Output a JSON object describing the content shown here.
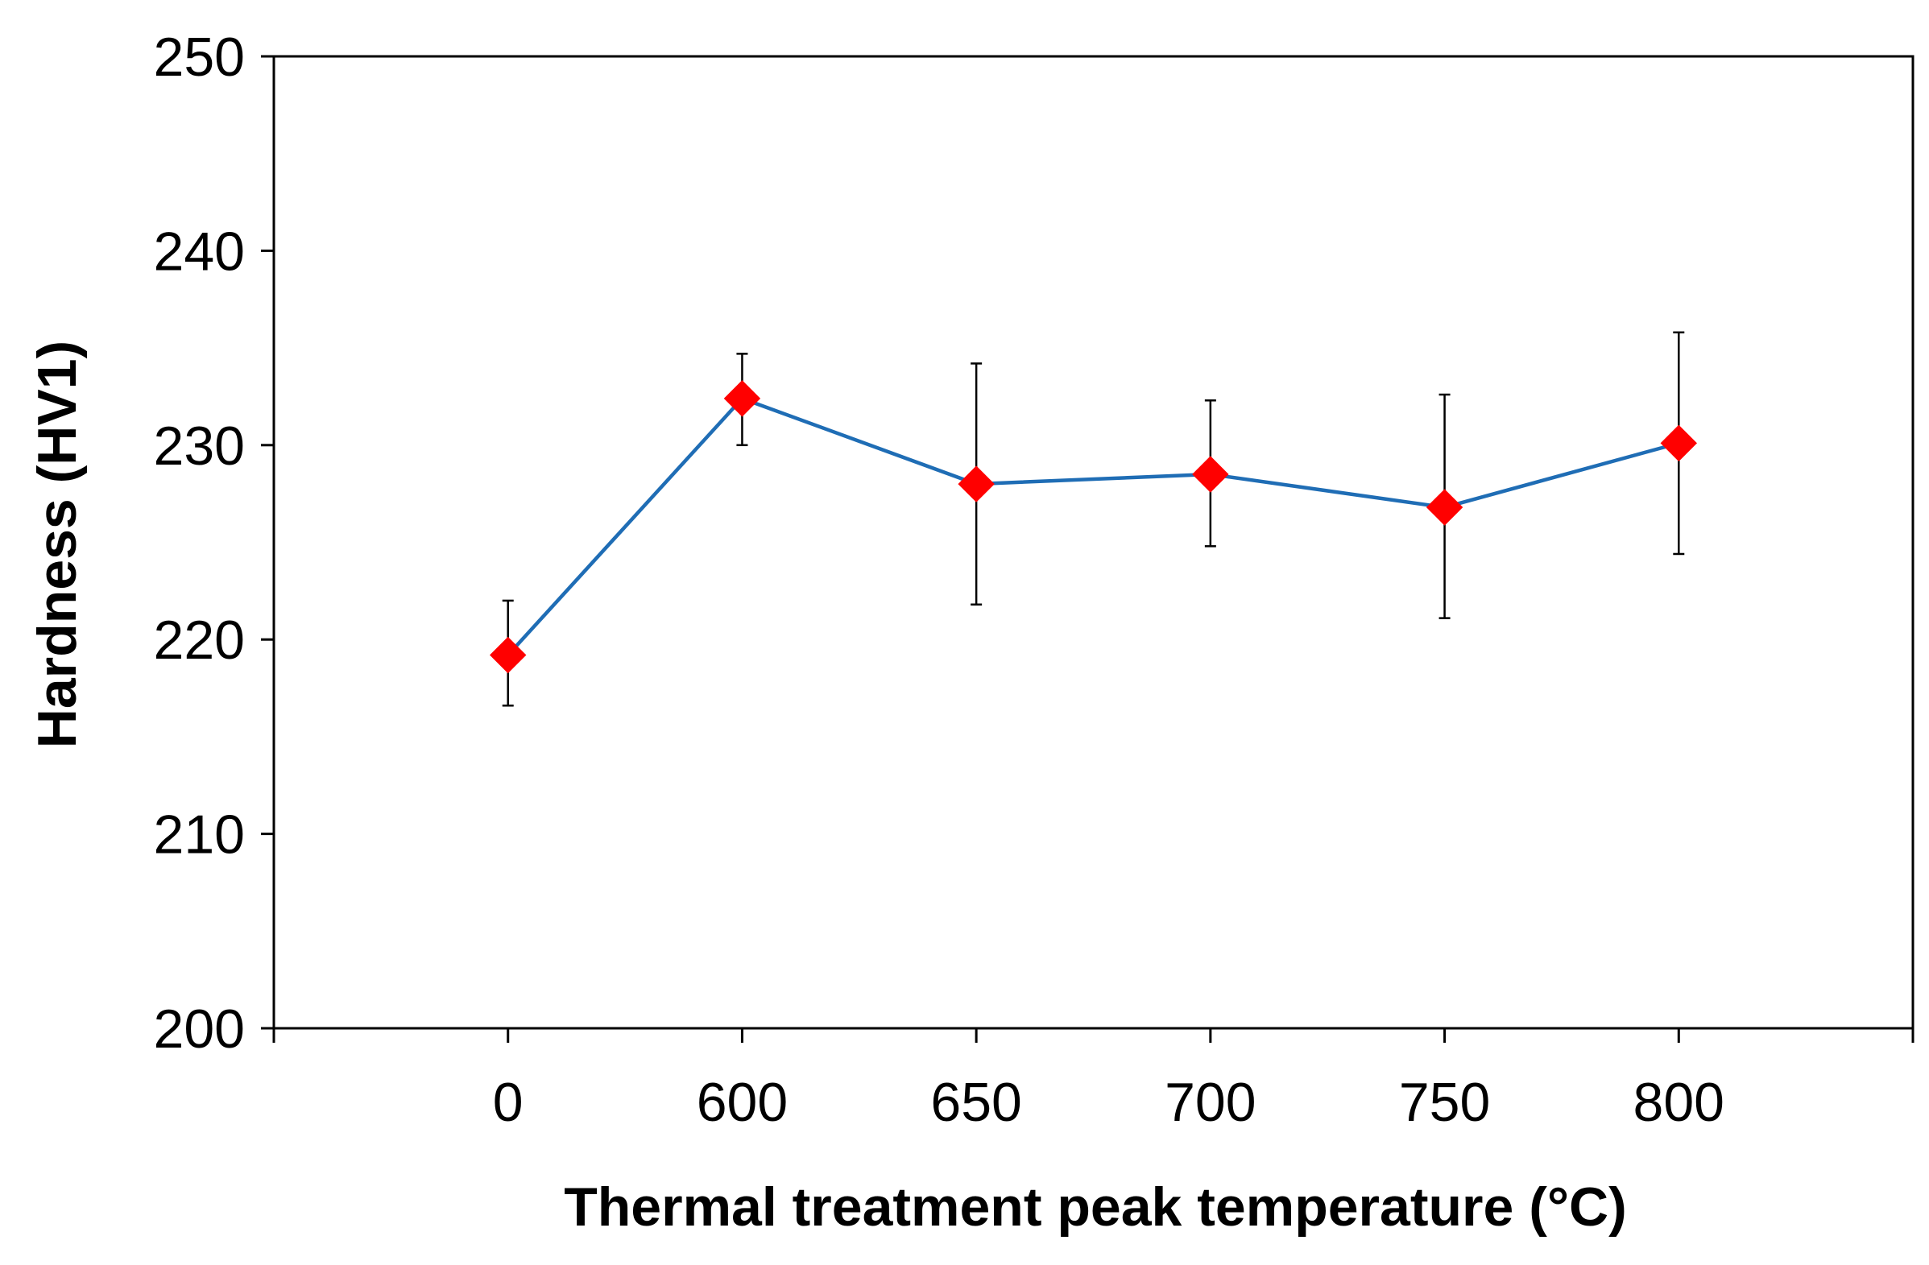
{
  "chart_data": {
    "type": "line",
    "title": "",
    "xlabel": "Thermal treatment peak temperature (°C)",
    "ylabel": "Hardness (HV1)",
    "categories": [
      "0",
      "600",
      "650",
      "700",
      "750",
      "800"
    ],
    "series": [
      {
        "name": "Hardness",
        "values": [
          219.2,
          232.4,
          228.0,
          228.5,
          226.8,
          230.1
        ],
        "error_upper": [
          222.0,
          234.7,
          234.2,
          232.3,
          232.6,
          235.8
        ],
        "error_lower": [
          216.6,
          230.0,
          221.8,
          224.8,
          221.1,
          224.4
        ],
        "line_color": "#1F6DB5",
        "marker_color": "#FF0000",
        "marker": "diamond"
      }
    ],
    "ylim": [
      200,
      250
    ],
    "yticks": [
      "200",
      "210",
      "220",
      "230",
      "240",
      "250"
    ],
    "grid": false,
    "legend": "none"
  }
}
